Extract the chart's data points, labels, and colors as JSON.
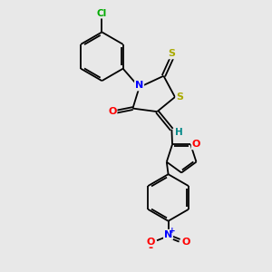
{
  "background_color": "#e8e8e8",
  "bond_color": "#000000",
  "atom_colors": {
    "N": "#0000ff",
    "O": "#ff0000",
    "S": "#aaaa00",
    "Cl": "#00aa00",
    "C": "#000000",
    "H": "#008888"
  },
  "figsize": [
    3.0,
    3.0
  ],
  "dpi": 100
}
